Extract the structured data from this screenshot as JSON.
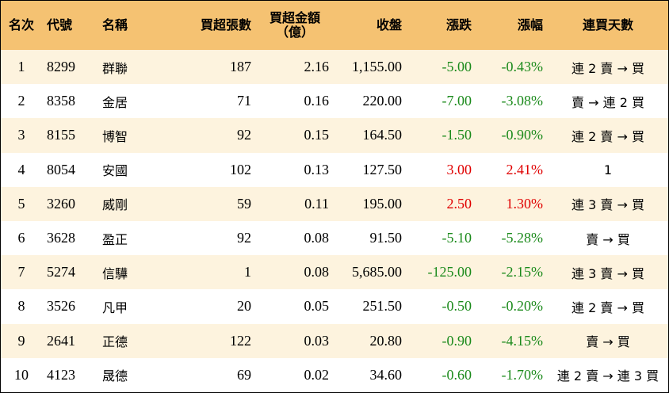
{
  "headers": {
    "rank": "名次",
    "code": "代號",
    "name": "名稱",
    "net_buy_lots": "買超張數",
    "net_buy_amount_line1": "買超金額",
    "net_buy_amount_line2": "（億）",
    "close": "收盤",
    "change": "漲跌",
    "change_pct": "漲幅",
    "streak": "連買天數"
  },
  "rows": [
    {
      "rank": "1",
      "code": "8299",
      "name": "群聯",
      "lots": "187",
      "amount": "2.16",
      "close": "1,155.00",
      "change": "-5.00",
      "pct": "-0.43%",
      "streak": "連 2 賣 → 買",
      "dir": "neg"
    },
    {
      "rank": "2",
      "code": "8358",
      "name": "金居",
      "lots": "71",
      "amount": "0.16",
      "close": "220.00",
      "change": "-7.00",
      "pct": "-3.08%",
      "streak": "賣 → 連 2 買",
      "dir": "neg"
    },
    {
      "rank": "3",
      "code": "8155",
      "name": "博智",
      "lots": "92",
      "amount": "0.15",
      "close": "164.50",
      "change": "-1.50",
      "pct": "-0.90%",
      "streak": "連 2 賣 → 買",
      "dir": "neg"
    },
    {
      "rank": "4",
      "code": "8054",
      "name": "安國",
      "lots": "102",
      "amount": "0.13",
      "close": "127.50",
      "change": "3.00",
      "pct": "2.41%",
      "streak": "1",
      "dir": "pos"
    },
    {
      "rank": "5",
      "code": "3260",
      "name": "威剛",
      "lots": "59",
      "amount": "0.11",
      "close": "195.00",
      "change": "2.50",
      "pct": "1.30%",
      "streak": "連 3 賣 → 買",
      "dir": "pos"
    },
    {
      "rank": "6",
      "code": "3628",
      "name": "盈正",
      "lots": "92",
      "amount": "0.08",
      "close": "91.50",
      "change": "-5.10",
      "pct": "-5.28%",
      "streak": "賣 → 買",
      "dir": "neg"
    },
    {
      "rank": "7",
      "code": "5274",
      "name": "信驊",
      "lots": "1",
      "amount": "0.08",
      "close": "5,685.00",
      "change": "-125.00",
      "pct": "-2.15%",
      "streak": "連 3 賣 → 買",
      "dir": "neg"
    },
    {
      "rank": "8",
      "code": "3526",
      "name": "凡甲",
      "lots": "20",
      "amount": "0.05",
      "close": "251.50",
      "change": "-0.50",
      "pct": "-0.20%",
      "streak": "連 2 賣 → 買",
      "dir": "neg"
    },
    {
      "rank": "9",
      "code": "2641",
      "name": "正德",
      "lots": "122",
      "amount": "0.03",
      "close": "20.80",
      "change": "-0.90",
      "pct": "-4.15%",
      "streak": "賣 → 買",
      "dir": "neg"
    },
    {
      "rank": "10",
      "code": "4123",
      "name": "晟德",
      "lots": "69",
      "amount": "0.02",
      "close": "34.60",
      "change": "-0.60",
      "pct": "-1.70%",
      "streak": "連 2 賣 → 連 3 買",
      "dir": "neg"
    }
  ],
  "colors": {
    "header_bg": "#f5c272",
    "stripe_bg": "#fdf3de",
    "negative": "#1b8a1b",
    "positive": "#e00000"
  }
}
